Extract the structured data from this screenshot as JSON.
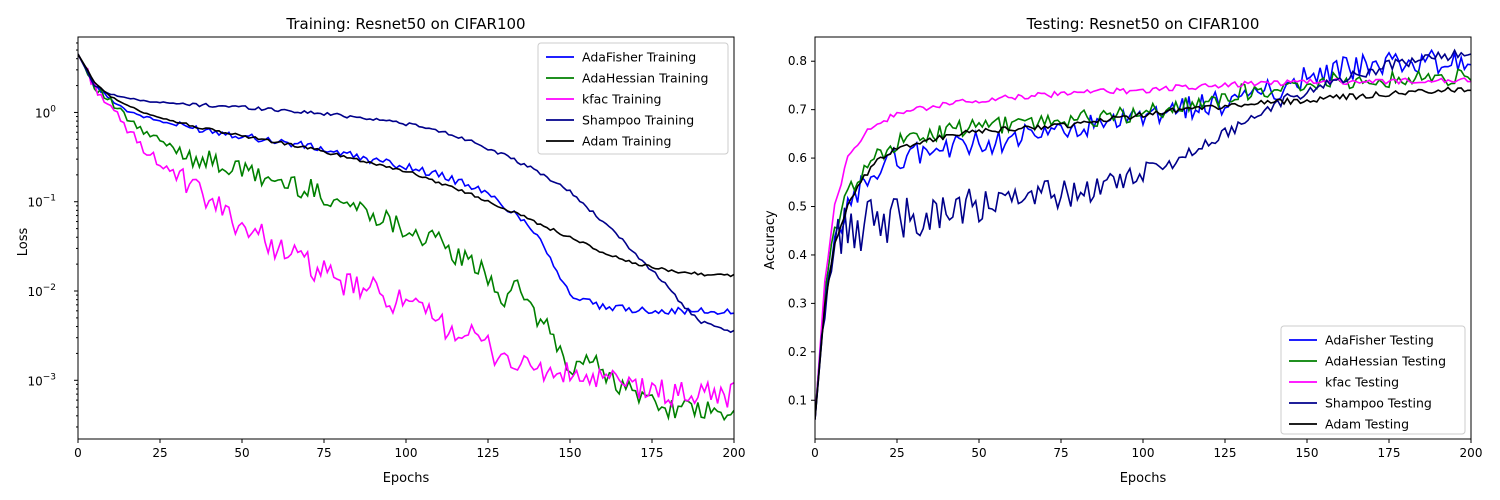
{
  "chart_data": [
    {
      "type": "line",
      "title": "Training: Resnet50 on CIFAR100",
      "xlabel": "Epochs",
      "ylabel": "Loss",
      "yscale": "log",
      "xlim": [
        0,
        200
      ],
      "ylim": [
        0.00022,
        7
      ],
      "xticks": [
        0,
        25,
        50,
        75,
        100,
        125,
        150,
        175,
        200
      ],
      "yticks": [
        {
          "value": 0.001,
          "base": "10",
          "exp": "−3"
        },
        {
          "value": 0.01,
          "base": "10",
          "exp": "−2"
        },
        {
          "value": 0.1,
          "base": "10",
          "exp": "−1"
        },
        {
          "value": 1,
          "base": "10",
          "exp": "0"
        }
      ],
      "grid": false,
      "legend_position": "top-right",
      "series": [
        {
          "name": "AdaFisher Training",
          "color": "#0000ff",
          "x": [
            0,
            5,
            10,
            15,
            20,
            25,
            30,
            40,
            50,
            60,
            70,
            80,
            90,
            100,
            110,
            120,
            125,
            130,
            135,
            140,
            145,
            150,
            160,
            170,
            180,
            190,
            200
          ],
          "y": [
            4.5,
            2.0,
            1.4,
            1.05,
            0.9,
            0.8,
            0.72,
            0.63,
            0.55,
            0.48,
            0.42,
            0.35,
            0.29,
            0.25,
            0.2,
            0.15,
            0.12,
            0.09,
            0.065,
            0.045,
            0.02,
            0.009,
            0.0065,
            0.0062,
            0.006,
            0.0059,
            0.0058
          ]
        },
        {
          "name": "AdaHessian Training",
          "color": "#008000",
          "x": [
            0,
            5,
            10,
            15,
            20,
            25,
            30,
            40,
            50,
            60,
            70,
            80,
            90,
            100,
            110,
            115,
            120,
            125,
            130,
            135,
            140,
            145,
            150,
            155,
            160,
            165,
            170,
            180,
            190,
            200
          ],
          "y": [
            4.5,
            2.0,
            1.3,
            0.85,
            0.6,
            0.48,
            0.38,
            0.28,
            0.22,
            0.17,
            0.14,
            0.1,
            0.075,
            0.05,
            0.035,
            0.025,
            0.02,
            0.015,
            0.008,
            0.011,
            0.005,
            0.003,
            0.0012,
            0.0018,
            0.0013,
            0.0009,
            0.0007,
            0.0005,
            0.00045,
            0.00038
          ]
        },
        {
          "name": "kfac Training",
          "color": "#ff00ff",
          "x": [
            0,
            5,
            10,
            15,
            20,
            25,
            30,
            40,
            50,
            60,
            70,
            80,
            90,
            100,
            110,
            120,
            130,
            140,
            150,
            160,
            170,
            180,
            190,
            200
          ],
          "y": [
            4.5,
            2.0,
            1.1,
            0.65,
            0.4,
            0.27,
            0.19,
            0.1,
            0.055,
            0.033,
            0.02,
            0.012,
            0.01,
            0.007,
            0.0045,
            0.003,
            0.0018,
            0.0013,
            0.0011,
            0.001,
            0.00085,
            0.0007,
            0.0007,
            0.0007
          ]
        },
        {
          "name": "Shampoo Training",
          "color": "#00008b",
          "x": [
            0,
            5,
            10,
            15,
            20,
            30,
            40,
            50,
            60,
            70,
            80,
            90,
            100,
            110,
            120,
            130,
            140,
            150,
            160,
            165,
            170,
            175,
            180,
            185,
            190,
            195,
            200
          ],
          "y": [
            4.5,
            2.0,
            1.6,
            1.45,
            1.35,
            1.25,
            1.2,
            1.15,
            1.08,
            1.0,
            0.93,
            0.85,
            0.75,
            0.62,
            0.48,
            0.33,
            0.22,
            0.13,
            0.06,
            0.04,
            0.026,
            0.017,
            0.011,
            0.0065,
            0.0045,
            0.0038,
            0.0035
          ]
        },
        {
          "name": "Adam Training",
          "color": "#000000",
          "x": [
            0,
            5,
            10,
            15,
            20,
            25,
            30,
            40,
            50,
            60,
            70,
            80,
            90,
            100,
            110,
            120,
            130,
            140,
            150,
            160,
            170,
            180,
            190,
            200
          ],
          "y": [
            4.5,
            2.2,
            1.5,
            1.2,
            1.0,
            0.88,
            0.78,
            0.64,
            0.55,
            0.47,
            0.4,
            0.33,
            0.27,
            0.22,
            0.165,
            0.12,
            0.085,
            0.058,
            0.04,
            0.027,
            0.02,
            0.017,
            0.0155,
            0.015
          ]
        }
      ]
    },
    {
      "type": "line",
      "title": "Testing: Resnet50 on CIFAR100",
      "xlabel": "Epochs",
      "ylabel": "Accuracy",
      "xlim": [
        0,
        200
      ],
      "ylim": [
        0.02,
        0.85
      ],
      "xticks": [
        0,
        25,
        50,
        75,
        100,
        125,
        150,
        175,
        200
      ],
      "yticks": [
        0.1,
        0.2,
        0.3,
        0.4,
        0.5,
        0.6,
        0.7,
        0.8
      ],
      "grid": false,
      "legend_position": "bottom-right",
      "series": [
        {
          "name": "AdaFisher Testing",
          "color": "#0000ff",
          "x": [
            0,
            3,
            6,
            10,
            15,
            20,
            25,
            30,
            40,
            50,
            60,
            70,
            80,
            90,
            100,
            110,
            120,
            130,
            140,
            150,
            160,
            170,
            180,
            190,
            200
          ],
          "y": [
            0.06,
            0.3,
            0.42,
            0.5,
            0.55,
            0.58,
            0.6,
            0.61,
            0.62,
            0.63,
            0.64,
            0.65,
            0.66,
            0.67,
            0.68,
            0.7,
            0.71,
            0.72,
            0.74,
            0.77,
            0.785,
            0.79,
            0.795,
            0.8,
            0.797
          ]
        },
        {
          "name": "AdaHessian Testing",
          "color": "#008000",
          "x": [
            0,
            3,
            6,
            10,
            15,
            20,
            25,
            30,
            40,
            50,
            60,
            70,
            80,
            90,
            100,
            110,
            120,
            130,
            140,
            150,
            160,
            170,
            180,
            190,
            200
          ],
          "y": [
            0.07,
            0.32,
            0.45,
            0.53,
            0.58,
            0.61,
            0.63,
            0.64,
            0.655,
            0.665,
            0.67,
            0.675,
            0.68,
            0.685,
            0.69,
            0.705,
            0.72,
            0.735,
            0.745,
            0.755,
            0.76,
            0.762,
            0.765,
            0.766,
            0.767
          ]
        },
        {
          "name": "kfac Testing",
          "color": "#ff00ff",
          "x": [
            0,
            3,
            6,
            10,
            15,
            20,
            25,
            30,
            40,
            50,
            60,
            70,
            80,
            90,
            100,
            110,
            120,
            130,
            140,
            150,
            160,
            170,
            180,
            190,
            200
          ],
          "y": [
            0.06,
            0.35,
            0.5,
            0.6,
            0.65,
            0.675,
            0.69,
            0.7,
            0.71,
            0.72,
            0.725,
            0.73,
            0.735,
            0.738,
            0.74,
            0.745,
            0.748,
            0.752,
            0.755,
            0.757,
            0.758,
            0.758,
            0.759,
            0.759,
            0.76
          ]
        },
        {
          "name": "Shampoo Testing",
          "color": "#00008b",
          "x": [
            0,
            3,
            6,
            10,
            15,
            20,
            25,
            30,
            40,
            50,
            60,
            70,
            80,
            90,
            100,
            110,
            120,
            130,
            140,
            150,
            160,
            170,
            180,
            190,
            200
          ],
          "y": [
            0.06,
            0.32,
            0.42,
            0.45,
            0.46,
            0.47,
            0.48,
            0.48,
            0.49,
            0.5,
            0.51,
            0.52,
            0.53,
            0.55,
            0.57,
            0.6,
            0.63,
            0.67,
            0.71,
            0.74,
            0.76,
            0.78,
            0.8,
            0.81,
            0.812
          ]
        },
        {
          "name": "Adam Testing",
          "color": "#000000",
          "x": [
            0,
            3,
            6,
            10,
            15,
            20,
            25,
            30,
            40,
            50,
            60,
            70,
            80,
            90,
            100,
            110,
            120,
            130,
            140,
            150,
            160,
            170,
            180,
            190,
            200
          ],
          "y": [
            0.06,
            0.3,
            0.42,
            0.5,
            0.56,
            0.6,
            0.62,
            0.63,
            0.645,
            0.655,
            0.66,
            0.665,
            0.67,
            0.68,
            0.69,
            0.7,
            0.705,
            0.71,
            0.715,
            0.72,
            0.725,
            0.73,
            0.735,
            0.74,
            0.742
          ]
        }
      ]
    }
  ]
}
